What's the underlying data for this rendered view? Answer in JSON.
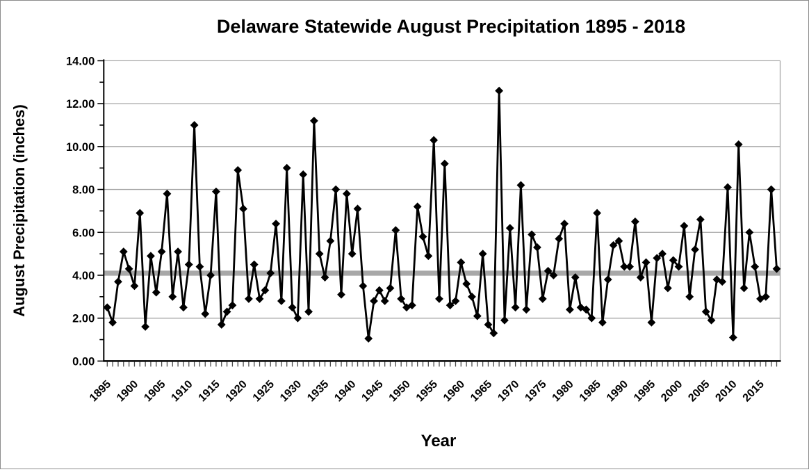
{
  "chart_data": {
    "type": "line",
    "title": "Delaware Statewide August Precipitation 1895 - 2018",
    "xlabel": "Year",
    "ylabel": "August Precipitation (inches)",
    "ylim": [
      0,
      14
    ],
    "ytick_step": 2,
    "ytick_labels": [
      "0.00",
      "2.00",
      "4.00",
      "6.00",
      "8.00",
      "10.00",
      "12.00",
      "14.00"
    ],
    "xtick_labels": [
      "1895",
      "1900",
      "1905",
      "1910",
      "1915",
      "1920",
      "1925",
      "1930",
      "1935",
      "1940",
      "1945",
      "1950",
      "1955",
      "1960",
      "1965",
      "1970",
      "1975",
      "1980",
      "1985",
      "1990",
      "1995",
      "2000",
      "2005",
      "2010",
      "2015"
    ],
    "grid": true,
    "legend": "none",
    "marker": "diamond",
    "series_color": "#000000",
    "gridline_color": "#a6a6a6",
    "mean_line": {
      "value": 4.1,
      "color": "#a8a8a8"
    },
    "start_year": 1895,
    "end_year": 2018,
    "years": [
      1895,
      1896,
      1897,
      1898,
      1899,
      1900,
      1901,
      1902,
      1903,
      1904,
      1905,
      1906,
      1907,
      1908,
      1909,
      1910,
      1911,
      1912,
      1913,
      1914,
      1915,
      1916,
      1917,
      1918,
      1919,
      1920,
      1921,
      1922,
      1923,
      1924,
      1925,
      1926,
      1927,
      1928,
      1929,
      1930,
      1931,
      1932,
      1933,
      1934,
      1935,
      1936,
      1937,
      1938,
      1939,
      1940,
      1941,
      1942,
      1943,
      1944,
      1945,
      1946,
      1947,
      1948,
      1949,
      1950,
      1951,
      1952,
      1953,
      1954,
      1955,
      1956,
      1957,
      1958,
      1959,
      1960,
      1961,
      1962,
      1963,
      1964,
      1965,
      1966,
      1967,
      1968,
      1969,
      1970,
      1971,
      1972,
      1973,
      1974,
      1975,
      1976,
      1977,
      1978,
      1979,
      1980,
      1981,
      1982,
      1983,
      1984,
      1985,
      1986,
      1987,
      1988,
      1989,
      1990,
      1991,
      1992,
      1993,
      1994,
      1995,
      1996,
      1997,
      1998,
      1999,
      2000,
      2001,
      2002,
      2003,
      2004,
      2005,
      2006,
      2007,
      2008,
      2009,
      2010,
      2011,
      2012,
      2013,
      2014,
      2015,
      2016,
      2017,
      2018
    ],
    "values": [
      2.5,
      1.8,
      3.7,
      5.1,
      4.3,
      3.5,
      6.9,
      1.6,
      4.9,
      3.2,
      5.1,
      7.8,
      3.0,
      5.1,
      2.5,
      4.5,
      11.0,
      4.4,
      2.2,
      4.0,
      7.9,
      1.7,
      2.3,
      2.6,
      8.9,
      7.1,
      2.9,
      4.5,
      2.9,
      3.3,
      4.1,
      6.4,
      2.8,
      9.0,
      2.5,
      2.0,
      8.7,
      2.3,
      11.2,
      5.0,
      3.9,
      5.6,
      8.0,
      3.1,
      7.8,
      5.0,
      7.1,
      3.5,
      1.05,
      2.8,
      3.3,
      2.8,
      3.4,
      6.1,
      2.9,
      2.5,
      2.6,
      7.2,
      5.8,
      4.9,
      10.3,
      2.9,
      9.2,
      2.6,
      2.8,
      4.6,
      3.6,
      3.0,
      2.1,
      5.0,
      1.7,
      1.3,
      12.6,
      1.9,
      6.2,
      2.5,
      8.2,
      2.4,
      5.9,
      5.3,
      2.9,
      4.2,
      4.0,
      5.7,
      6.4,
      2.4,
      3.9,
      2.5,
      2.4,
      2.0,
      6.9,
      1.8,
      3.8,
      5.4,
      5.6,
      4.4,
      4.4,
      6.5,
      3.9,
      4.6,
      1.8,
      4.8,
      5.0,
      3.4,
      4.7,
      4.4,
      6.3,
      3.0,
      5.2,
      6.6,
      2.3,
      1.9,
      3.8,
      3.7,
      8.1,
      1.1,
      10.1,
      3.4,
      6.0,
      4.4,
      2.9,
      3.0,
      8.0,
      4.3
    ]
  }
}
